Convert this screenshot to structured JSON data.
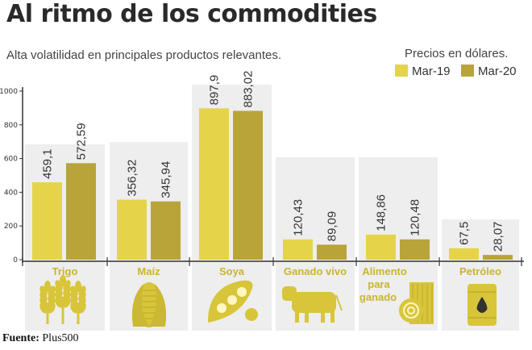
{
  "title": "Al ritmo de los commodities",
  "subtitle": "Alta volatilidad en principales productos relevantes.",
  "price_note": "Precios en dólares.",
  "source_label": "Fuente:",
  "source_value": "Plus500",
  "colors": {
    "mar19": "#e5d44a",
    "mar20": "#b9a43a",
    "label": "#c9b52c",
    "panel": "#eeeeee",
    "icon": "#d8c53a"
  },
  "chart_data": {
    "type": "bar",
    "title": "Al ritmo de los commodities",
    "ylim": [
      0,
      1000
    ],
    "yticks": [
      "0",
      "200",
      "400",
      "600",
      "800",
      "1000"
    ],
    "categories": [
      "Trigo",
      "Maíz",
      "Soya",
      "Ganado vivo",
      "Alimento para ganado",
      "Petróleo"
    ],
    "category_icons": [
      "wheat-icon",
      "corn-icon",
      "soybean-icon",
      "cattle-icon",
      "hay-bale-icon",
      "oil-barrel-icon"
    ],
    "series": [
      {
        "name": "Mar-19",
        "values": [
          459.1,
          356.32,
          897.9,
          120.43,
          148.86,
          67.5
        ],
        "labels": [
          "459,1",
          "356,32",
          "897,9",
          "120,43",
          "148,86",
          "67,5"
        ]
      },
      {
        "name": "Mar-20",
        "values": [
          572.59,
          345.94,
          883.02,
          89.09,
          120.48,
          28.07
        ],
        "labels": [
          "572,59",
          "345,94",
          "883,02",
          "89,09",
          "120,48",
          "28,07"
        ]
      }
    ],
    "legend": "top-right",
    "grid": false
  }
}
